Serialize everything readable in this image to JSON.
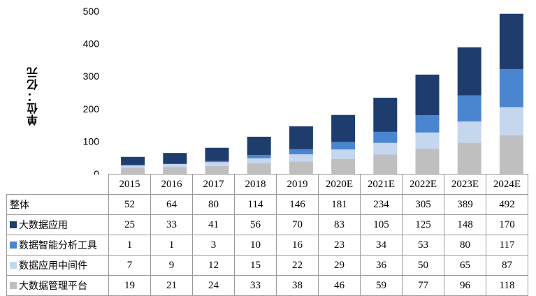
{
  "chart_data": {
    "type": "bar",
    "stacked": true,
    "ylabel": "单位：亿元",
    "ylim": [
      0,
      500
    ],
    "yticks": [
      0,
      100,
      200,
      300,
      400,
      500
    ],
    "categories": [
      "2015",
      "2016",
      "2017",
      "2018",
      "2019",
      "2020E",
      "2021E",
      "2022E",
      "2023E",
      "2024E"
    ],
    "total_label": "整体",
    "totals": [
      52,
      64,
      80,
      114,
      146,
      181,
      234,
      305,
      389,
      492
    ],
    "series": [
      {
        "name": "大数据应用",
        "color": "#1f3c6e",
        "values": [
          25,
          33,
          41,
          56,
          70,
          83,
          105,
          125,
          148,
          170
        ]
      },
      {
        "name": "数据智能分析工具",
        "color": "#4a86cf",
        "values": [
          1,
          1,
          3,
          10,
          16,
          23,
          34,
          53,
          80,
          117
        ]
      },
      {
        "name": "数据应用中间件",
        "color": "#c5d6ef",
        "values": [
          7,
          9,
          12,
          15,
          22,
          29,
          36,
          50,
          65,
          87
        ]
      },
      {
        "name": "大数据管理平台",
        "color": "#bfbfbf",
        "values": [
          19,
          21,
          24,
          33,
          38,
          46,
          59,
          77,
          96,
          118
        ]
      }
    ],
    "grid": false,
    "legend": "table-below"
  }
}
